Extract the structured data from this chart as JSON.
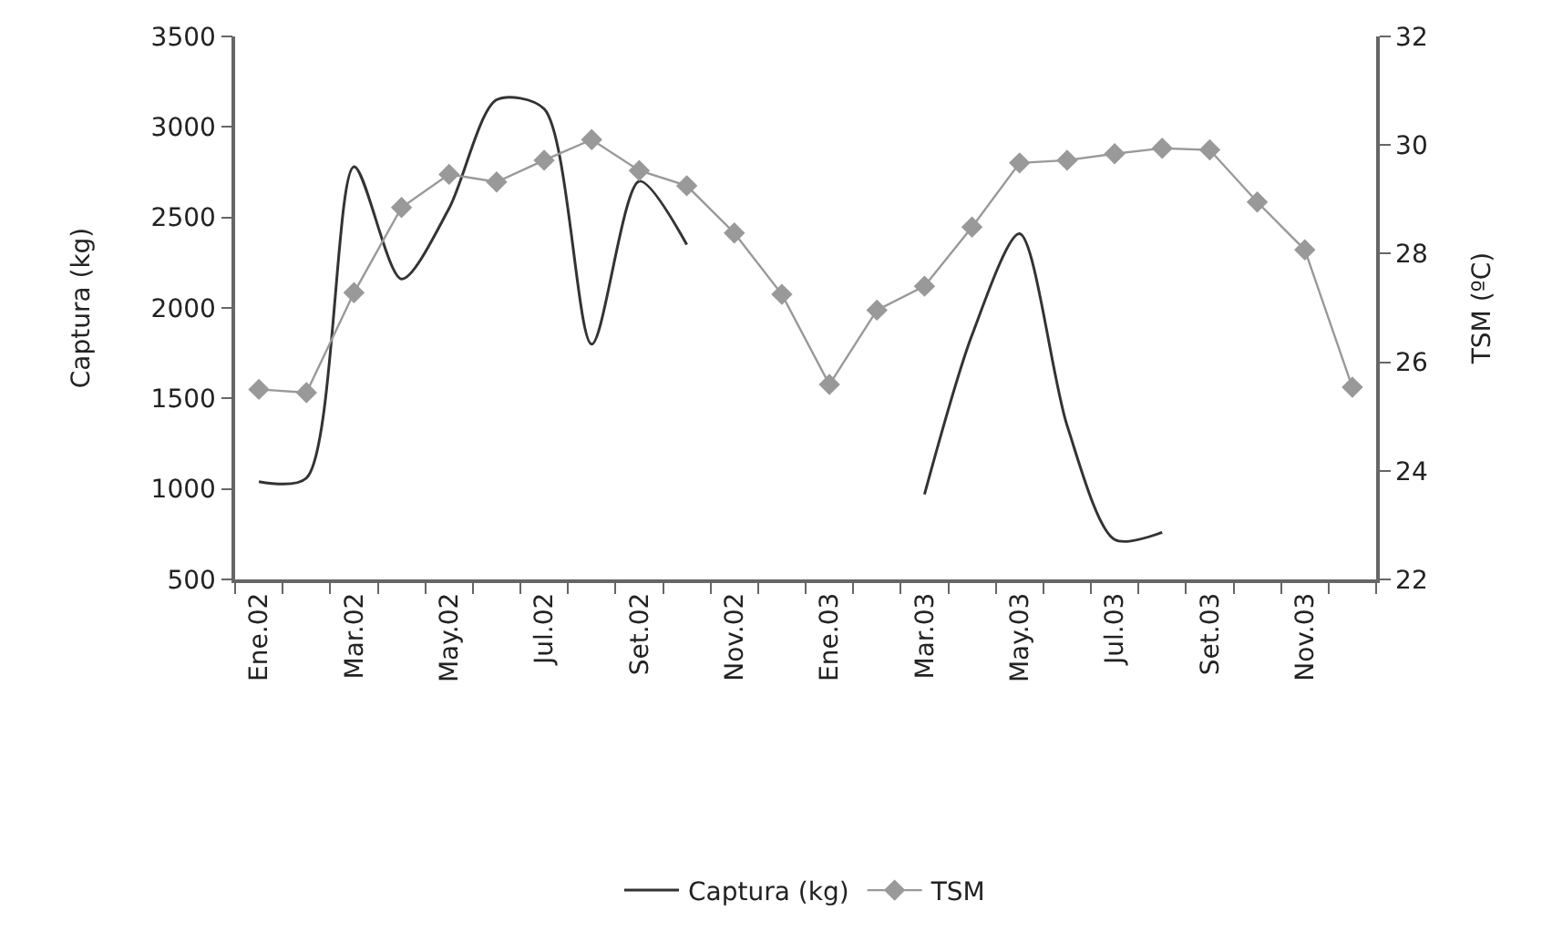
{
  "chart_data": {
    "type": "line",
    "categories": [
      "Ene.02",
      null,
      "Mar.02",
      null,
      "May.02",
      null,
      "Jul.02",
      null,
      "Set.02",
      null,
      "Nov.02",
      null,
      "Ene.03",
      null,
      "Mar.03",
      null,
      "May.03",
      null,
      "Jul.03",
      null,
      "Set.03",
      null,
      "Nov.03",
      null
    ],
    "series": [
      {
        "name": "Captura (kg)",
        "color": "#333333",
        "marker": "none",
        "values": [
          1040,
          1060,
          2780,
          2160,
          2550,
          3150,
          3100,
          1800,
          2700,
          2350,
          null,
          null,
          null,
          null,
          970,
          1850,
          2410,
          1350,
          720,
          760,
          null,
          null,
          null,
          null
        ]
      },
      {
        "name": "TSM",
        "color": "#999999",
        "marker": "diamond",
        "axis": "y2",
        "values": [
          25.5,
          25.44,
          27.28,
          28.85,
          29.46,
          29.32,
          29.72,
          30.1,
          29.53,
          29.25,
          28.38,
          27.25,
          25.59,
          26.96,
          27.4,
          28.49,
          29.67,
          29.72,
          29.84,
          29.94,
          29.91,
          28.95,
          28.07,
          25.54
        ]
      }
    ],
    "ylabel": "Captura (kg)",
    "y2label": "TSM (ºC)",
    "ylim": [
      500,
      3500
    ],
    "yticks": [
      500,
      1000,
      1500,
      2000,
      2500,
      3000,
      3500
    ],
    "y2lim": [
      22,
      32
    ],
    "y2ticks": [
      22,
      24,
      26,
      28,
      30,
      32
    ],
    "legend": "bottom"
  }
}
